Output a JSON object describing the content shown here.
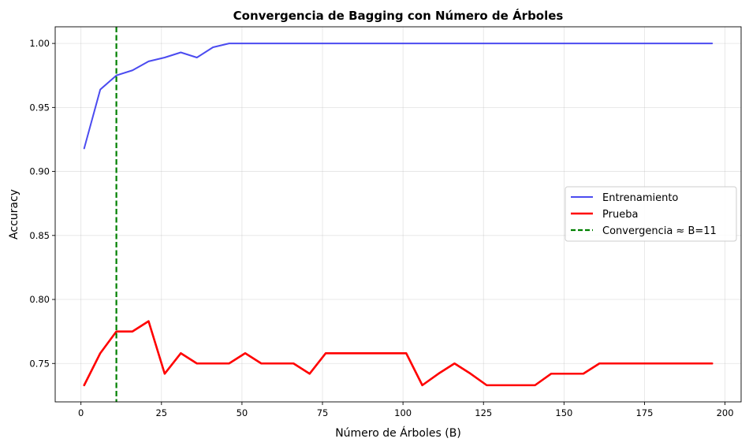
{
  "chart_data": {
    "type": "line",
    "title": "Convergencia de Bagging con Número de Árboles",
    "xlabel": "Número de Árboles (B)",
    "ylabel": "Accuracy",
    "xlim": [
      -8,
      205
    ],
    "ylim": [
      0.72,
      1.013
    ],
    "xticks": [
      0,
      25,
      50,
      75,
      100,
      125,
      150,
      175,
      200
    ],
    "xtick_labels": [
      "0",
      "25",
      "50",
      "75",
      "100",
      "125",
      "150",
      "175",
      "200"
    ],
    "yticks": [
      0.75,
      0.8,
      0.85,
      0.9,
      0.95,
      1.0
    ],
    "ytick_labels": [
      "0.75",
      "0.80",
      "0.85",
      "0.90",
      "0.95",
      "1.00"
    ],
    "grid": true,
    "legend_position": "center-right",
    "x": [
      1,
      6,
      11,
      16,
      21,
      26,
      31,
      36,
      41,
      46,
      51,
      56,
      61,
      66,
      71,
      76,
      81,
      86,
      91,
      96,
      101,
      106,
      111,
      116,
      121,
      126,
      131,
      136,
      141,
      146,
      151,
      156,
      161,
      166,
      171,
      176,
      181,
      186,
      191,
      196
    ],
    "series": [
      {
        "name": "Entrenamiento",
        "color": "#4b4bf0",
        "line_style": "solid",
        "values": [
          0.918,
          0.964,
          0.975,
          0.979,
          0.986,
          0.989,
          0.993,
          0.989,
          0.997,
          1.0,
          1.0,
          1.0,
          1.0,
          1.0,
          1.0,
          1.0,
          1.0,
          1.0,
          1.0,
          1.0,
          1.0,
          1.0,
          1.0,
          1.0,
          1.0,
          1.0,
          1.0,
          1.0,
          1.0,
          1.0,
          1.0,
          1.0,
          1.0,
          1.0,
          1.0,
          1.0,
          1.0,
          1.0,
          1.0,
          1.0
        ]
      },
      {
        "name": "Prueba",
        "color": "#ff0000",
        "line_style": "solid",
        "values": [
          0.733,
          0.758,
          0.775,
          0.775,
          0.783,
          0.742,
          0.758,
          0.75,
          0.75,
          0.75,
          0.758,
          0.75,
          0.75,
          0.75,
          0.742,
          0.758,
          0.758,
          0.758,
          0.758,
          0.758,
          0.758,
          0.733,
          0.742,
          0.75,
          0.742,
          0.733,
          0.733,
          0.733,
          0.733,
          0.742,
          0.742,
          0.742,
          0.75,
          0.75,
          0.75,
          0.75,
          0.75,
          0.75,
          0.75,
          0.75
        ]
      }
    ],
    "vline": {
      "name": "Convergencia ≈ B=11",
      "x": 11,
      "color": "#008000",
      "line_style": "dashed"
    }
  }
}
